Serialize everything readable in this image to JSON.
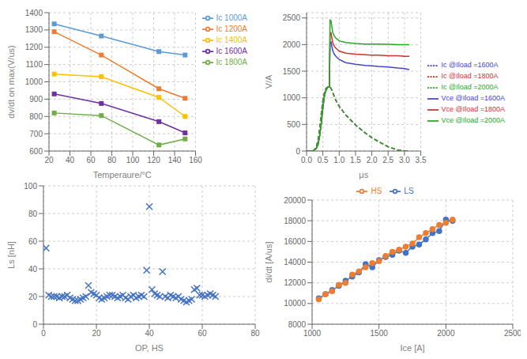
{
  "chart_data": [
    {
      "type": "line",
      "xlabel": "Temperaure/°C",
      "ylabel": "dv/dt on max(V/us)",
      "xlim": [
        20,
        160
      ],
      "ylim": [
        600,
        1400
      ],
      "xticks": [
        20,
        40,
        60,
        80,
        100,
        120,
        140,
        160
      ],
      "yticks": [
        600,
        700,
        800,
        900,
        1000,
        1100,
        1200,
        1300,
        1400
      ],
      "grid": true,
      "legend": "upper right",
      "marker": "square",
      "x": [
        25,
        70,
        125,
        150
      ],
      "series": [
        {
          "name": "Ic 1000A",
          "color": "#5B9BD5",
          "values": [
            1335,
            1265,
            1175,
            1155
          ]
        },
        {
          "name": "Ic 1200A",
          "color": "#ED7D31",
          "values": [
            1290,
            1155,
            960,
            905
          ]
        },
        {
          "name": "Ic 1400A",
          "color": "#FFC000",
          "values": [
            1045,
            1030,
            910,
            800
          ]
        },
        {
          "name": "Ic 1600A",
          "color": "#7030A0",
          "values": [
            930,
            875,
            770,
            705
          ]
        },
        {
          "name": "Ic 1800A",
          "color": "#70AD47",
          "values": [
            820,
            805,
            635,
            670
          ]
        }
      ]
    },
    {
      "type": "line",
      "xlabel": "μs",
      "ylabel": "V/A",
      "xlim": [
        0,
        3.5
      ],
      "ylim": [
        0,
        2600
      ],
      "xticks": [
        {
          "value": 0,
          "label": "0.0"
        },
        0.5,
        {
          "value": 1.0,
          "label": "1.0"
        },
        1.5,
        {
          "value": 2.0,
          "label": "2.0"
        },
        2.5,
        {
          "value": 3.0,
          "label": "3.0"
        },
        3.5
      ],
      "yticks": [
        0,
        500,
        1000,
        1500,
        2000,
        2500
      ],
      "grid": true,
      "legend": "center right",
      "series": [
        {
          "name": "Vce @Iload =1600A",
          "color": "#4444CC",
          "line_style": "solid",
          "x": [
            0,
            0.1,
            0.2,
            0.3,
            0.35,
            0.4,
            0.45,
            0.5,
            0.55,
            0.6,
            0.65,
            0.7,
            0.72,
            0.75,
            0.8,
            0.85,
            0.9,
            1.0,
            1.2,
            1.5,
            1.8,
            2.0,
            2.2,
            2.5,
            2.8,
            3.0,
            3.15
          ],
          "values": [
            0,
            0,
            0,
            50,
            120,
            280,
            520,
            820,
            1050,
            1150,
            1200,
            1200,
            2050,
            2050,
            1890,
            1820,
            1780,
            1720,
            1660,
            1630,
            1610,
            1600,
            1590,
            1580,
            1560,
            1550,
            1530
          ]
        },
        {
          "name": "Ic @Iload =1600A",
          "color": "#4444CC",
          "line_style": "dashed",
          "x": [
            0,
            0.08,
            0.15,
            0.2,
            0.25,
            0.3,
            0.35,
            0.4,
            0.45,
            0.5,
            0.55,
            0.6,
            0.65,
            0.7,
            0.72,
            0.75,
            0.8,
            0.9,
            1.0,
            1.2,
            1.5,
            1.8,
            2.0,
            2.2,
            2.5,
            2.8,
            3.0,
            3.1,
            3.15
          ],
          "values": [
            0,
            0,
            0,
            0,
            30,
            80,
            200,
            400,
            700,
            950,
            1100,
            1180,
            1200,
            1200,
            1200,
            1180,
            1100,
            950,
            840,
            680,
            490,
            340,
            250,
            180,
            80,
            20,
            5,
            0,
            0
          ]
        },
        {
          "name": "Vce @Iload =1800A",
          "color": "#CC3333",
          "line_style": "solid",
          "x": [
            0,
            0.1,
            0.2,
            0.3,
            0.35,
            0.4,
            0.45,
            0.5,
            0.55,
            0.6,
            0.65,
            0.7,
            0.72,
            0.75,
            0.8,
            0.85,
            0.9,
            1.0,
            1.2,
            1.5,
            1.8,
            2.0,
            2.2,
            2.5,
            2.8,
            3.0,
            3.15
          ],
          "values": [
            0,
            0,
            0,
            50,
            120,
            280,
            520,
            820,
            1050,
            1150,
            1200,
            1200,
            2230,
            2220,
            2040,
            1970,
            1930,
            1880,
            1840,
            1820,
            1810,
            1800,
            1800,
            1790,
            1790,
            1780,
            1780
          ]
        },
        {
          "name": "Ic @Iload =1800A",
          "color": "#CC3333",
          "line_style": "dashed",
          "x": [
            0,
            0.08,
            0.15,
            0.2,
            0.25,
            0.3,
            0.35,
            0.4,
            0.45,
            0.5,
            0.55,
            0.6,
            0.65,
            0.7,
            0.72,
            0.75,
            0.8,
            0.9,
            1.0,
            1.2,
            1.5,
            1.8,
            2.0,
            2.2,
            2.5,
            2.8,
            3.0,
            3.1,
            3.15
          ],
          "values": [
            0,
            0,
            0,
            0,
            30,
            80,
            200,
            400,
            700,
            950,
            1100,
            1180,
            1200,
            1200,
            1200,
            1180,
            1100,
            950,
            840,
            680,
            490,
            340,
            250,
            180,
            80,
            20,
            5,
            0,
            0
          ]
        },
        {
          "name": "Vce @Iload =2000A",
          "color": "#22AA22",
          "line_style": "solid",
          "x": [
            0,
            0.1,
            0.2,
            0.3,
            0.35,
            0.4,
            0.45,
            0.5,
            0.55,
            0.6,
            0.65,
            0.7,
            0.72,
            0.75,
            0.8,
            0.85,
            0.9,
            1.0,
            1.2,
            1.5,
            1.8,
            2.0,
            2.2,
            2.5,
            2.8,
            3.0,
            3.15
          ],
          "values": [
            0,
            0,
            0,
            50,
            120,
            280,
            520,
            820,
            1050,
            1150,
            1200,
            1200,
            2460,
            2445,
            2230,
            2160,
            2120,
            2070,
            2040,
            2020,
            2010,
            2010,
            2010,
            2005,
            2000,
            2000,
            2000
          ]
        },
        {
          "name": "Ic @Iload =2000A",
          "color": "#22AA22",
          "line_style": "dashed",
          "x": [
            0,
            0.08,
            0.15,
            0.2,
            0.25,
            0.3,
            0.35,
            0.4,
            0.45,
            0.5,
            0.55,
            0.6,
            0.65,
            0.7,
            0.72,
            0.75,
            0.8,
            0.9,
            1.0,
            1.2,
            1.5,
            1.8,
            2.0,
            2.2,
            2.5,
            2.8,
            3.0,
            3.1,
            3.15
          ],
          "values": [
            0,
            0,
            0,
            0,
            30,
            80,
            200,
            400,
            700,
            950,
            1100,
            1180,
            1200,
            1200,
            1200,
            1180,
            1100,
            950,
            840,
            680,
            490,
            340,
            250,
            180,
            80,
            20,
            5,
            0,
            0
          ]
        }
      ]
    },
    {
      "type": "scatter",
      "xlabel": "OP, HS",
      "ylabel": "Ls [nH]",
      "xlim": [
        0,
        80
      ],
      "ylim": [
        0,
        100
      ],
      "xticks": [
        0,
        20,
        40,
        60,
        80
      ],
      "yticks": [
        0,
        20,
        40,
        60,
        80,
        100
      ],
      "grid": true,
      "marker": "x",
      "color": "#4472C4",
      "x": [
        1,
        2,
        3,
        4,
        5,
        6,
        7,
        8,
        9,
        10,
        11,
        12,
        13,
        14,
        15,
        16,
        17,
        18,
        19,
        20,
        21,
        22,
        23,
        24,
        25,
        26,
        27,
        28,
        29,
        30,
        31,
        32,
        33,
        34,
        35,
        36,
        37,
        38,
        39,
        40,
        41,
        42,
        43,
        44,
        45,
        46,
        47,
        48,
        49,
        50,
        51,
        52,
        53,
        54,
        55,
        56,
        57,
        58,
        59,
        60,
        61,
        62,
        63,
        64,
        65
      ],
      "values": [
        55,
        21,
        20,
        20,
        20,
        19,
        20,
        20,
        21,
        19,
        18,
        17,
        17,
        18,
        19,
        20,
        28,
        23,
        22,
        21,
        19,
        18,
        19,
        20,
        21,
        21,
        20,
        19,
        20,
        21,
        19,
        18,
        20,
        21,
        19,
        20,
        21,
        20,
        39,
        85,
        25,
        22,
        21,
        20,
        38,
        20,
        19,
        21,
        20,
        19,
        20,
        18,
        17,
        16,
        17,
        18,
        25,
        26,
        21,
        21,
        20,
        21,
        22,
        21,
        20
      ]
    },
    {
      "type": "line",
      "xlabel": "Ice [A]",
      "ylabel": "di/dt [A/us]",
      "xlim": [
        1000,
        2500
      ],
      "ylim": [
        8000,
        20000
      ],
      "xticks": [
        1000,
        1500,
        2000,
        2500
      ],
      "yticks": [
        8000,
        10000,
        12000,
        14000,
        16000,
        18000,
        20000
      ],
      "grid": true,
      "legend": "upper center",
      "marker": "circle",
      "x": [
        1050,
        1100,
        1150,
        1200,
        1250,
        1300,
        1350,
        1400,
        1450,
        1500,
        1550,
        1600,
        1650,
        1700,
        1750,
        1800,
        1850,
        1900,
        1950,
        2000,
        2050
      ],
      "series": [
        {
          "name": "LS",
          "color": "#4472C4",
          "values": [
            10500,
            10900,
            11300,
            11700,
            12200,
            12600,
            13000,
            13800,
            13500,
            14200,
            14500,
            14700,
            15100,
            14900,
            15500,
            15700,
            16200,
            16800,
            17000,
            18100,
            18000
          ]
        },
        {
          "name": "HS",
          "color": "#ED7D31",
          "values": [
            10400,
            10900,
            11200,
            11800,
            12000,
            12800,
            13100,
            13500,
            13900,
            14100,
            14600,
            15000,
            15200,
            15500,
            15800,
            16400,
            16800,
            17200,
            17600,
            17800,
            18100
          ]
        }
      ]
    }
  ]
}
